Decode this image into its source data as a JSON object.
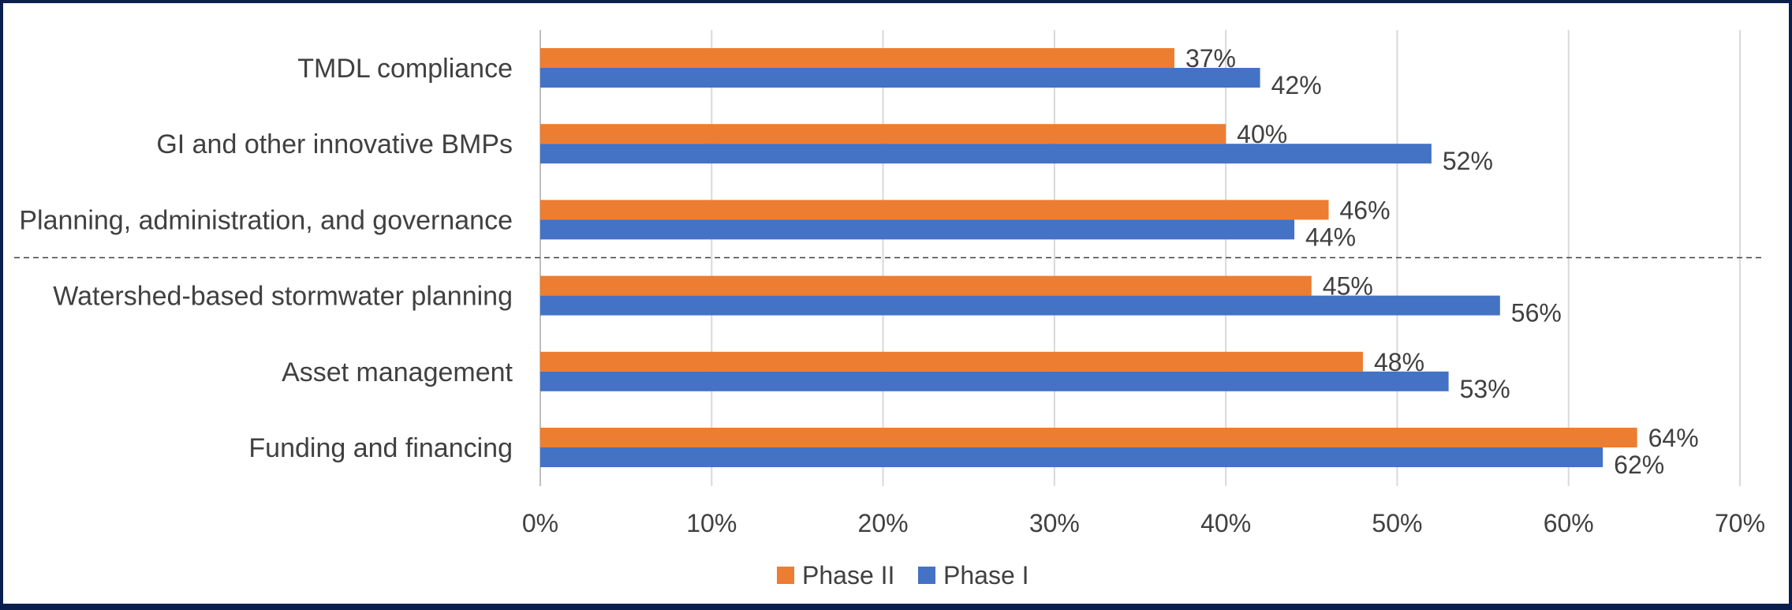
{
  "chart_data": {
    "type": "bar",
    "orientation": "horizontal",
    "categories": [
      "TMDL compliance",
      "GI and other innovative BMPs",
      "Planning, administration, and governance",
      "Watershed-based stormwater planning",
      "Asset management",
      "Funding and financing"
    ],
    "series": [
      {
        "name": "Phase II",
        "color": "#ed7d31",
        "values": [
          37,
          40,
          46,
          45,
          48,
          64
        ],
        "labels": [
          "37%",
          "40%",
          "46%",
          "45%",
          "48%",
          "64%"
        ]
      },
      {
        "name": "Phase I",
        "color": "#4472c4",
        "values": [
          42,
          52,
          44,
          56,
          53,
          62
        ],
        "labels": [
          "42%",
          "52%",
          "44%",
          "56%",
          "53%",
          "62%"
        ]
      }
    ],
    "xlim": [
      0,
      70
    ],
    "xticks": [
      0,
      10,
      20,
      30,
      40,
      50,
      60,
      70
    ],
    "xtick_labels": [
      "0%",
      "10%",
      "20%",
      "30%",
      "40%",
      "50%",
      "60%",
      "70%"
    ],
    "grid": true,
    "divider_after_category": 2,
    "legend_position": "bottom",
    "title": "",
    "xlabel": "",
    "ylabel": ""
  }
}
